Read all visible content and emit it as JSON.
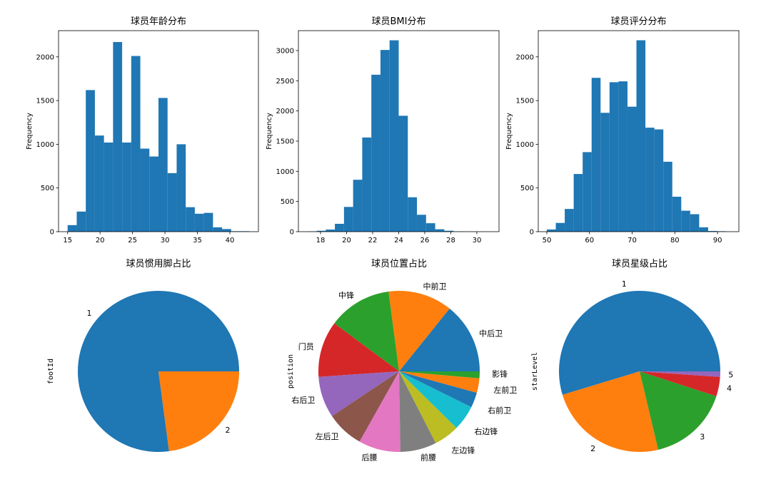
{
  "chart_data": [
    {
      "type": "bar",
      "title": "球员年龄分布",
      "xlabel": "",
      "ylabel": "Frequency",
      "xlim": [
        13.6,
        44.4
      ],
      "ylim": [
        0,
        2300
      ],
      "xticks": [
        15,
        20,
        25,
        30,
        35,
        40
      ],
      "yticks": [
        0,
        500,
        1000,
        1500,
        2000
      ],
      "bins": [
        {
          "x0": 15.0,
          "x1": 16.4,
          "value": 75
        },
        {
          "x0": 16.4,
          "x1": 17.8,
          "value": 230
        },
        {
          "x0": 17.8,
          "x1": 19.2,
          "value": 1620
        },
        {
          "x0": 19.2,
          "x1": 20.6,
          "value": 1100
        },
        {
          "x0": 20.6,
          "x1": 22.0,
          "value": 1020
        },
        {
          "x0": 22.0,
          "x1": 23.4,
          "value": 2170
        },
        {
          "x0": 23.4,
          "x1": 24.8,
          "value": 1020
        },
        {
          "x0": 24.8,
          "x1": 26.2,
          "value": 2010
        },
        {
          "x0": 26.2,
          "x1": 27.6,
          "value": 950
        },
        {
          "x0": 27.6,
          "x1": 29.0,
          "value": 860
        },
        {
          "x0": 29.0,
          "x1": 30.4,
          "value": 1530
        },
        {
          "x0": 30.4,
          "x1": 31.8,
          "value": 670
        },
        {
          "x0": 31.8,
          "x1": 33.2,
          "value": 1000
        },
        {
          "x0": 33.2,
          "x1": 34.6,
          "value": 280
        },
        {
          "x0": 34.6,
          "x1": 36.0,
          "value": 205
        },
        {
          "x0": 36.0,
          "x1": 37.4,
          "value": 215
        },
        {
          "x0": 37.4,
          "x1": 38.8,
          "value": 50
        },
        {
          "x0": 38.8,
          "x1": 40.2,
          "value": 30
        },
        {
          "x0": 40.2,
          "x1": 41.6,
          "value": 5
        },
        {
          "x0": 41.6,
          "x1": 43.0,
          "value": 5
        }
      ],
      "color": "#1f77b4"
    },
    {
      "type": "bar",
      "title": "球员BMI分布",
      "xlabel": "",
      "ylabel": "Frequency",
      "xlim": [
        16.3,
        31.7
      ],
      "ylim": [
        0,
        3330
      ],
      "xticks": [
        18,
        20,
        22,
        24,
        26,
        28,
        30
      ],
      "yticks": [
        0,
        500,
        1000,
        1500,
        2000,
        2500,
        3000
      ],
      "bins": [
        {
          "x0": 17.0,
          "x1": 17.7,
          "value": 5
        },
        {
          "x0": 17.7,
          "x1": 18.4,
          "value": 15
        },
        {
          "x0": 18.4,
          "x1": 19.1,
          "value": 35
        },
        {
          "x0": 19.1,
          "x1": 19.8,
          "value": 130
        },
        {
          "x0": 19.8,
          "x1": 20.5,
          "value": 410
        },
        {
          "x0": 20.5,
          "x1": 21.2,
          "value": 860
        },
        {
          "x0": 21.2,
          "x1": 21.9,
          "value": 1560
        },
        {
          "x0": 21.9,
          "x1": 22.6,
          "value": 2600
        },
        {
          "x0": 22.6,
          "x1": 23.3,
          "value": 3010
        },
        {
          "x0": 23.3,
          "x1": 24.0,
          "value": 3170
        },
        {
          "x0": 24.0,
          "x1": 24.7,
          "value": 1920
        },
        {
          "x0": 24.7,
          "x1": 25.4,
          "value": 570
        },
        {
          "x0": 25.4,
          "x1": 26.1,
          "value": 280
        },
        {
          "x0": 26.1,
          "x1": 26.8,
          "value": 140
        },
        {
          "x0": 26.8,
          "x1": 27.5,
          "value": 40
        },
        {
          "x0": 27.5,
          "x1": 28.2,
          "value": 15
        },
        {
          "x0": 28.2,
          "x1": 28.9,
          "value": 5
        },
        {
          "x0": 28.9,
          "x1": 29.6,
          "value": 2
        },
        {
          "x0": 29.6,
          "x1": 30.3,
          "value": 1
        },
        {
          "x0": 30.3,
          "x1": 31.0,
          "value": 1
        }
      ],
      "color": "#1f77b4"
    },
    {
      "type": "bar",
      "title": "球员评分分布",
      "xlabel": "",
      "ylabel": "Frequency",
      "xlim": [
        48.0,
        95.0
      ],
      "ylim": [
        0,
        2300
      ],
      "xticks": [
        50,
        60,
        70,
        80,
        90
      ],
      "yticks": [
        0,
        500,
        1000,
        1500,
        2000
      ],
      "bins": [
        {
          "x0": 50.0,
          "x1": 52.1,
          "value": 25
        },
        {
          "x0": 52.1,
          "x1": 54.2,
          "value": 100
        },
        {
          "x0": 54.2,
          "x1": 56.3,
          "value": 260
        },
        {
          "x0": 56.3,
          "x1": 58.4,
          "value": 660
        },
        {
          "x0": 58.4,
          "x1": 60.5,
          "value": 910
        },
        {
          "x0": 60.5,
          "x1": 62.6,
          "value": 1760
        },
        {
          "x0": 62.6,
          "x1": 64.7,
          "value": 1360
        },
        {
          "x0": 64.7,
          "x1": 66.8,
          "value": 1710
        },
        {
          "x0": 66.8,
          "x1": 68.9,
          "value": 1720
        },
        {
          "x0": 68.9,
          "x1": 71.0,
          "value": 1430
        },
        {
          "x0": 71.0,
          "x1": 73.1,
          "value": 2190
        },
        {
          "x0": 73.1,
          "x1": 75.2,
          "value": 1190
        },
        {
          "x0": 75.2,
          "x1": 77.3,
          "value": 1170
        },
        {
          "x0": 77.3,
          "x1": 79.4,
          "value": 800
        },
        {
          "x0": 79.4,
          "x1": 81.5,
          "value": 400
        },
        {
          "x0": 81.5,
          "x1": 83.6,
          "value": 240
        },
        {
          "x0": 83.6,
          "x1": 85.7,
          "value": 200
        },
        {
          "x0": 85.7,
          "x1": 87.8,
          "value": 50
        },
        {
          "x0": 87.8,
          "x1": 89.9,
          "value": 8
        },
        {
          "x0": 89.9,
          "x1": 92.0,
          "value": 5
        }
      ],
      "color": "#1f77b4"
    },
    {
      "type": "pie",
      "title": "球员惯用脚占比",
      "ylabel": "footId",
      "start_angle_deg": 0,
      "slices": [
        {
          "label": "1",
          "value": 0.771,
          "color": "#1f77b4"
        },
        {
          "label": "2",
          "value": 0.229,
          "color": "#ff7f0e"
        }
      ]
    },
    {
      "type": "pie",
      "title": "球员位置占比",
      "ylabel": "position",
      "start_angle_deg": 0,
      "slices": [
        {
          "label": "中后卫",
          "value": 0.1245,
          "color": "#1f77b4"
        },
        {
          "label": "中前卫",
          "value": 0.1125,
          "color": "#ff7f0e"
        },
        {
          "label": "中锋",
          "value": 0.1115,
          "color": "#2ca02c"
        },
        {
          "label": "门员",
          "value": 0.0985,
          "color": "#d62728"
        },
        {
          "label": "右后卫",
          "value": 0.0725,
          "color": "#9467bd"
        },
        {
          "label": "左后卫",
          "value": 0.0655,
          "color": "#8c564b"
        },
        {
          "label": "后腰",
          "value": 0.0735,
          "color": "#e377c2"
        },
        {
          "label": "前腰",
          "value": 0.0635,
          "color": "#7f7f7f"
        },
        {
          "label": "左边锋",
          "value": 0.0445,
          "color": "#bcbd22"
        },
        {
          "label": "右边锋",
          "value": 0.0445,
          "color": "#17becf"
        },
        {
          "label": "右前卫",
          "value": 0.0265,
          "color": "#1f77b4"
        },
        {
          "label": "左前卫",
          "value": 0.0255,
          "color": "#ff7f0e"
        },
        {
          "label": "影锋",
          "value": 0.012,
          "color": "#2ca02c"
        }
      ]
    },
    {
      "type": "pie",
      "title": "球员星级占比",
      "ylabel": "starLevel",
      "start_angle_deg": 0,
      "slices": [
        {
          "label": "1",
          "value": 0.547,
          "color": "#1f77b4"
        },
        {
          "label": "2",
          "value": 0.24,
          "color": "#ff7f0e"
        },
        {
          "label": "3",
          "value": 0.163,
          "color": "#2ca02c"
        },
        {
          "label": "4",
          "value": 0.039,
          "color": "#d62728"
        },
        {
          "label": "5",
          "value": 0.011,
          "color": "#9467bd"
        }
      ]
    }
  ]
}
